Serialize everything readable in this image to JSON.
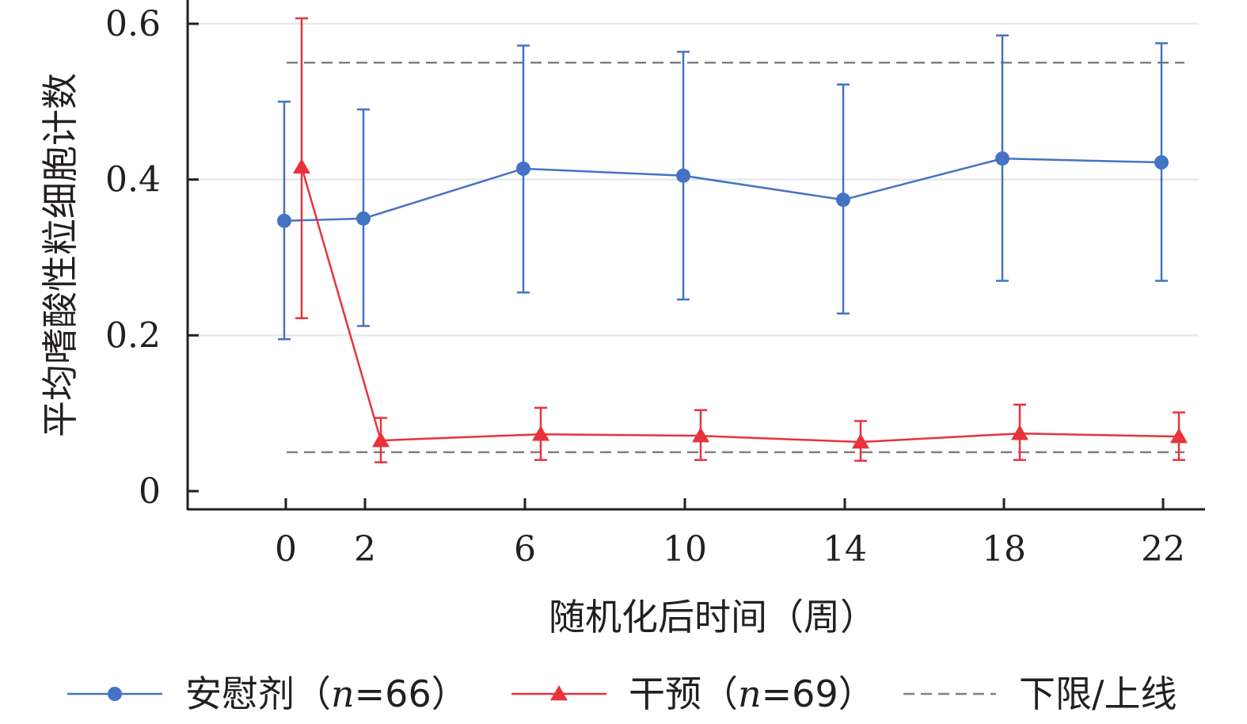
{
  "chart_data": {
    "type": "line",
    "xlabel": "随机化后时间（周）",
    "ylabel": "平均嗜酸性粒细胞计数",
    "x_ticks": [
      "0",
      "2",
      "6",
      "10",
      "14",
      "18",
      "22"
    ],
    "y_ticks": [
      "0",
      "0.2",
      "0.4",
      "0.6"
    ],
    "ylim": [
      0,
      0.6
    ],
    "grid": "horizontal",
    "legend_position": "bottom",
    "series": [
      {
        "name": "安慰剂（n=66）",
        "legend_prefix": "安慰剂（",
        "legend_n": "n",
        "legend_suffix": "=66）",
        "color": "#4472c4",
        "marker": "circle",
        "x": [
          0,
          2,
          6,
          10,
          14,
          18,
          22
        ],
        "y": [
          0.347,
          0.35,
          0.414,
          0.405,
          0.374,
          0.427,
          0.422
        ],
        "err_low": [
          0.195,
          0.212,
          0.255,
          0.246,
          0.228,
          0.27,
          0.27
        ],
        "err_high": [
          0.5,
          0.49,
          0.572,
          0.564,
          0.522,
          0.585,
          0.575
        ]
      },
      {
        "name": "干预（n=69）",
        "legend_prefix": "干预（",
        "legend_n": "n",
        "legend_suffix": "=69）",
        "color": "#e8323c",
        "marker": "triangle",
        "x": [
          0,
          2,
          6,
          10,
          14,
          18,
          22
        ],
        "y": [
          0.416,
          0.065,
          0.073,
          0.071,
          0.063,
          0.074,
          0.07
        ],
        "err_low": [
          0.222,
          0.037,
          0.04,
          0.04,
          0.039,
          0.04,
          0.04
        ],
        "err_high": [
          0.607,
          0.094,
          0.107,
          0.104,
          0.09,
          0.111,
          0.101
        ]
      }
    ],
    "reference_lines": {
      "name": "下限/上线",
      "color": "#808080",
      "style": "dashed",
      "values": [
        0.05,
        0.55
      ]
    }
  }
}
